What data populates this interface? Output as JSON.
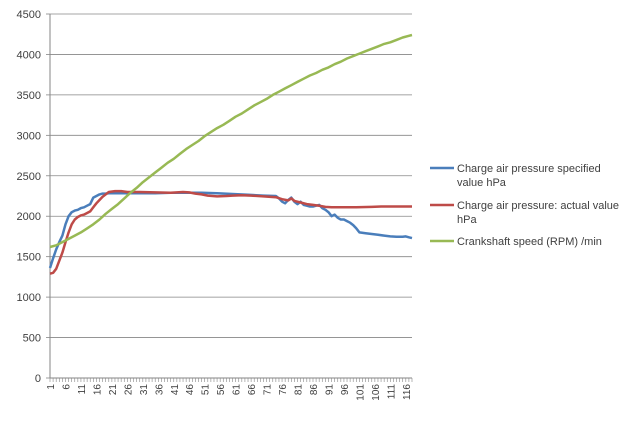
{
  "chart_data": {
    "type": "line",
    "title": "",
    "xlabel": "",
    "ylabel": "",
    "ylim": [
      0,
      4500
    ],
    "yticks": [
      0,
      500,
      1000,
      1500,
      2000,
      2500,
      3000,
      3500,
      4000,
      4500
    ],
    "xlim": [
      1,
      118
    ],
    "xtick_start": 1,
    "xtick_step": 5,
    "grid": "horizontal",
    "legend": "right",
    "series": [
      {
        "name": "Charge air pressure specified value hPa",
        "color": "#4a7ebb",
        "points": [
          [
            1,
            1360
          ],
          [
            2,
            1480
          ],
          [
            3,
            1590
          ],
          [
            4,
            1680
          ],
          [
            5,
            1760
          ],
          [
            6,
            1900
          ],
          [
            7,
            2000
          ],
          [
            8,
            2050
          ],
          [
            9,
            2070
          ],
          [
            10,
            2080
          ],
          [
            11,
            2100
          ],
          [
            12,
            2110
          ],
          [
            13,
            2130
          ],
          [
            14,
            2150
          ],
          [
            15,
            2230
          ],
          [
            16,
            2250
          ],
          [
            17,
            2270
          ],
          [
            18,
            2280
          ],
          [
            19,
            2280
          ],
          [
            20,
            2285
          ],
          [
            25,
            2285
          ],
          [
            30,
            2285
          ],
          [
            35,
            2285
          ],
          [
            40,
            2290
          ],
          [
            45,
            2290
          ],
          [
            50,
            2290
          ],
          [
            55,
            2285
          ],
          [
            60,
            2275
          ],
          [
            65,
            2265
          ],
          [
            70,
            2255
          ],
          [
            74,
            2250
          ],
          [
            75,
            2220
          ],
          [
            76,
            2180
          ],
          [
            77,
            2160
          ],
          [
            78,
            2200
          ],
          [
            79,
            2230
          ],
          [
            80,
            2180
          ],
          [
            81,
            2150
          ],
          [
            82,
            2180
          ],
          [
            83,
            2140
          ],
          [
            84,
            2130
          ],
          [
            85,
            2120
          ],
          [
            86,
            2120
          ],
          [
            87,
            2130
          ],
          [
            88,
            2140
          ],
          [
            89,
            2100
          ],
          [
            90,
            2080
          ],
          [
            91,
            2050
          ],
          [
            92,
            2000
          ],
          [
            93,
            2020
          ],
          [
            94,
            1980
          ],
          [
            95,
            1960
          ],
          [
            96,
            1960
          ],
          [
            97,
            1940
          ],
          [
            98,
            1920
          ],
          [
            99,
            1890
          ],
          [
            100,
            1850
          ],
          [
            101,
            1800
          ],
          [
            103,
            1790
          ],
          [
            105,
            1780
          ],
          [
            107,
            1770
          ],
          [
            109,
            1760
          ],
          [
            111,
            1750
          ],
          [
            113,
            1745
          ],
          [
            115,
            1745
          ],
          [
            116,
            1750
          ],
          [
            117,
            1740
          ],
          [
            118,
            1730
          ]
        ]
      },
      {
        "name": "Charge air pressure: actual value hPa",
        "color": "#be4b48",
        "points": [
          [
            1,
            1290
          ],
          [
            2,
            1300
          ],
          [
            3,
            1350
          ],
          [
            4,
            1450
          ],
          [
            5,
            1550
          ],
          [
            6,
            1680
          ],
          [
            7,
            1800
          ],
          [
            8,
            1900
          ],
          [
            9,
            1960
          ],
          [
            10,
            1990
          ],
          [
            11,
            2010
          ],
          [
            12,
            2020
          ],
          [
            13,
            2040
          ],
          [
            14,
            2060
          ],
          [
            15,
            2110
          ],
          [
            16,
            2160
          ],
          [
            17,
            2200
          ],
          [
            18,
            2240
          ],
          [
            19,
            2270
          ],
          [
            20,
            2300
          ],
          [
            22,
            2310
          ],
          [
            24,
            2310
          ],
          [
            26,
            2300
          ],
          [
            28,
            2300
          ],
          [
            30,
            2300
          ],
          [
            35,
            2295
          ],
          [
            40,
            2290
          ],
          [
            44,
            2300
          ],
          [
            46,
            2295
          ],
          [
            48,
            2280
          ],
          [
            50,
            2270
          ],
          [
            52,
            2255
          ],
          [
            55,
            2245
          ],
          [
            58,
            2250
          ],
          [
            60,
            2255
          ],
          [
            63,
            2260
          ],
          [
            66,
            2255
          ],
          [
            70,
            2245
          ],
          [
            74,
            2235
          ],
          [
            76,
            2210
          ],
          [
            78,
            2195
          ],
          [
            79,
            2220
          ],
          [
            80,
            2190
          ],
          [
            82,
            2170
          ],
          [
            84,
            2150
          ],
          [
            86,
            2140
          ],
          [
            88,
            2130
          ],
          [
            90,
            2115
          ],
          [
            92,
            2110
          ],
          [
            95,
            2110
          ],
          [
            100,
            2110
          ],
          [
            105,
            2115
          ],
          [
            108,
            2120
          ],
          [
            110,
            2120
          ],
          [
            115,
            2120
          ],
          [
            118,
            2120
          ]
        ]
      },
      {
        "name": "Crankshaft speed (RPM)  /min",
        "color": "#98b954",
        "points": [
          [
            1,
            1620
          ],
          [
            3,
            1640
          ],
          [
            5,
            1680
          ],
          [
            7,
            1720
          ],
          [
            9,
            1760
          ],
          [
            11,
            1800
          ],
          [
            13,
            1850
          ],
          [
            15,
            1900
          ],
          [
            17,
            1960
          ],
          [
            19,
            2030
          ],
          [
            21,
            2090
          ],
          [
            23,
            2150
          ],
          [
            25,
            2220
          ],
          [
            27,
            2290
          ],
          [
            29,
            2350
          ],
          [
            31,
            2420
          ],
          [
            33,
            2480
          ],
          [
            35,
            2540
          ],
          [
            37,
            2600
          ],
          [
            39,
            2660
          ],
          [
            41,
            2710
          ],
          [
            43,
            2770
          ],
          [
            45,
            2830
          ],
          [
            47,
            2880
          ],
          [
            49,
            2930
          ],
          [
            51,
            2990
          ],
          [
            53,
            3040
          ],
          [
            55,
            3090
          ],
          [
            57,
            3130
          ],
          [
            59,
            3180
          ],
          [
            61,
            3230
          ],
          [
            63,
            3270
          ],
          [
            65,
            3320
          ],
          [
            67,
            3370
          ],
          [
            69,
            3410
          ],
          [
            71,
            3450
          ],
          [
            73,
            3500
          ],
          [
            75,
            3540
          ],
          [
            77,
            3580
          ],
          [
            79,
            3620
          ],
          [
            81,
            3660
          ],
          [
            83,
            3700
          ],
          [
            85,
            3740
          ],
          [
            87,
            3770
          ],
          [
            89,
            3810
          ],
          [
            91,
            3840
          ],
          [
            93,
            3880
          ],
          [
            95,
            3910
          ],
          [
            97,
            3950
          ],
          [
            99,
            3980
          ],
          [
            101,
            4010
          ],
          [
            103,
            4040
          ],
          [
            105,
            4070
          ],
          [
            107,
            4100
          ],
          [
            109,
            4130
          ],
          [
            111,
            4150
          ],
          [
            113,
            4180
          ],
          [
            115,
            4210
          ],
          [
            117,
            4230
          ],
          [
            118,
            4240
          ]
        ]
      }
    ]
  }
}
